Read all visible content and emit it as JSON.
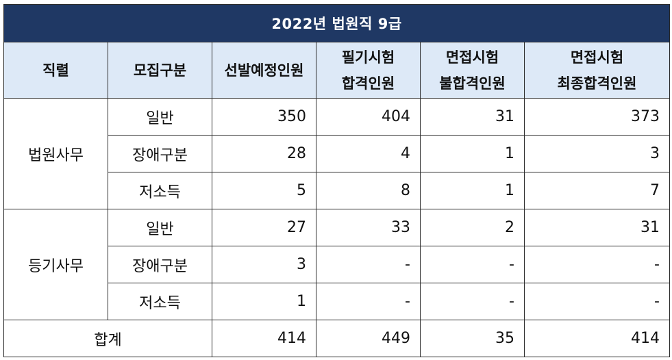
{
  "table": {
    "title": "2022년 법원직 9급",
    "headers": [
      [
        "직렬"
      ],
      [
        "모집구분"
      ],
      [
        "선발예정인원"
      ],
      [
        "필기시험",
        "합격인원"
      ],
      [
        "면접시험",
        "불합격인원"
      ],
      [
        "면접시험",
        "최종합격인원"
      ]
    ],
    "groups": [
      {
        "name": "법원사무",
        "rows": [
          {
            "category": "일반",
            "planned": "350",
            "written_pass": "404",
            "interview_fail": "31",
            "final_pass": "373"
          },
          {
            "category": "장애구분",
            "planned": "28",
            "written_pass": "4",
            "interview_fail": "1",
            "final_pass": "3"
          },
          {
            "category": "저소득",
            "planned": "5",
            "written_pass": "8",
            "interview_fail": "1",
            "final_pass": "7"
          }
        ]
      },
      {
        "name": "등기사무",
        "rows": [
          {
            "category": "일반",
            "planned": "27",
            "written_pass": "33",
            "interview_fail": "2",
            "final_pass": "31"
          },
          {
            "category": "장애구분",
            "planned": "3",
            "written_pass": "-",
            "interview_fail": "-",
            "final_pass": "-"
          },
          {
            "category": "저소득",
            "planned": "1",
            "written_pass": "-",
            "interview_fail": "-",
            "final_pass": "-"
          }
        ]
      }
    ],
    "total": {
      "label": "합계",
      "planned": "414",
      "written_pass": "449",
      "interview_fail": "35",
      "final_pass": "414"
    }
  }
}
